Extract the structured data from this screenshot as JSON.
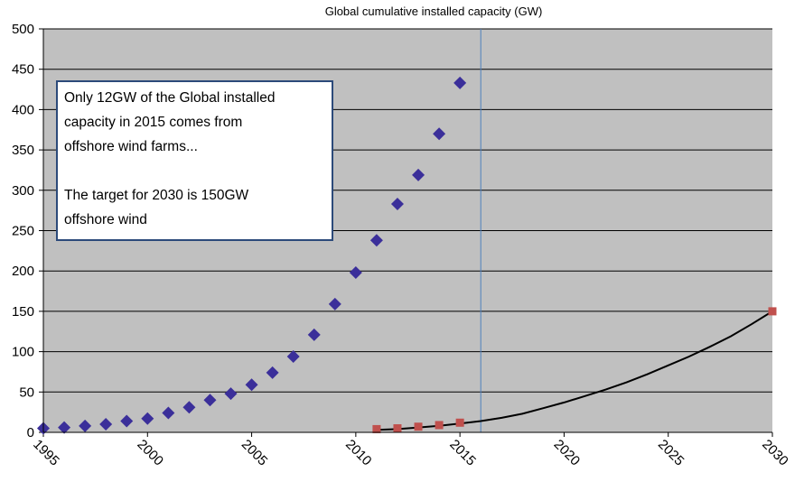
{
  "chart_data": {
    "type": "scatter",
    "title": "Global cumulative installed capacity (GW)",
    "xlabel": "",
    "ylabel": "",
    "xlim": [
      1995,
      2030
    ],
    "ylim": [
      0,
      500
    ],
    "x_ticks": [
      1995,
      2000,
      2005,
      2010,
      2015,
      2020,
      2025,
      2030
    ],
    "y_ticks": [
      0,
      50,
      100,
      150,
      200,
      250,
      300,
      350,
      400,
      450,
      500
    ],
    "grid": "horizontal",
    "legend": "none",
    "colors": {
      "plot_background": "#c0c0c0",
      "global_marker": "#3b2f9a",
      "offshore_marker": "#c0504d",
      "trend_line": "#000000",
      "reference_line": "#4f81bd"
    },
    "series": [
      {
        "marker": "diamond",
        "x": [
          1995,
          1996,
          1997,
          1998,
          1999,
          2000,
          2001,
          2002,
          2003,
          2004,
          2005,
          2006,
          2007,
          2008,
          2009,
          2010,
          2011,
          2012,
          2013,
          2014,
          2015
        ],
        "y": [
          5,
          6,
          8,
          10,
          14,
          17,
          24,
          31,
          40,
          48,
          59,
          74,
          94,
          121,
          159,
          198,
          238,
          283,
          319,
          370,
          433
        ]
      },
      {
        "marker": "square",
        "x": [
          2011,
          2012,
          2013,
          2014,
          2015,
          2030
        ],
        "y": [
          4,
          5,
          7,
          9,
          12,
          150
        ]
      }
    ],
    "trendline": {
      "type": "polynomial",
      "x": [
        2011,
        2012,
        2013,
        2014,
        2015,
        2016,
        2017,
        2018,
        2019,
        2020,
        2021,
        2022,
        2023,
        2024,
        2025,
        2026,
        2027,
        2028,
        2029,
        2030
      ],
      "y": [
        3,
        4,
        6,
        8,
        11,
        14,
        18,
        23,
        30,
        37,
        45,
        53,
        62,
        72,
        83,
        94,
        106,
        119,
        134,
        150
      ]
    },
    "reference_line_x": 2016,
    "annotation": {
      "lines": [
        "Only 12GW of the Global installed",
        "capacity in 2015 comes from",
        "offshore wind farms...",
        "",
        "The target for 2030 is 150GW",
        "offshore wind"
      ]
    }
  }
}
